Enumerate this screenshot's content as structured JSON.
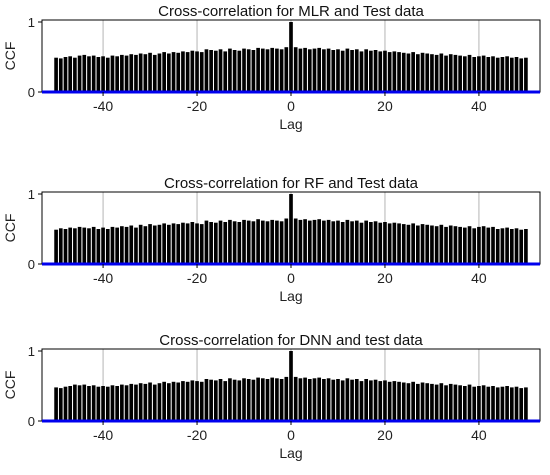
{
  "style": {
    "bar_color": "#000000",
    "zero_line_color": "#0000ee",
    "grid_color": "#b4b4b4",
    "frame_color": "#000000"
  },
  "chart_data": [
    {
      "type": "bar",
      "title": "Cross-correlation for MLR and Test data",
      "xlabel": "Lag",
      "ylabel": "CCF",
      "xlim": [
        -53,
        53
      ],
      "ylim": [
        0,
        1
      ],
      "xticks": [
        -40,
        -20,
        0,
        20,
        40
      ],
      "yticks": [
        0,
        1
      ],
      "grid": "vertical at x ticks",
      "x": [
        -50,
        -49,
        -48,
        -47,
        -46,
        -45,
        -44,
        -43,
        -42,
        -41,
        -40,
        -39,
        -38,
        -37,
        -36,
        -35,
        -34,
        -33,
        -32,
        -31,
        -30,
        -29,
        -28,
        -27,
        -26,
        -25,
        -24,
        -23,
        -22,
        -21,
        -20,
        -19,
        -18,
        -17,
        -16,
        -15,
        -14,
        -13,
        -12,
        -11,
        -10,
        -9,
        -8,
        -7,
        -6,
        -5,
        -4,
        -3,
        -2,
        -1,
        0,
        1,
        2,
        3,
        4,
        5,
        6,
        7,
        8,
        9,
        10,
        11,
        12,
        13,
        14,
        15,
        16,
        17,
        18,
        19,
        20,
        21,
        22,
        23,
        24,
        25,
        26,
        27,
        28,
        29,
        30,
        31,
        32,
        33,
        34,
        35,
        36,
        37,
        38,
        39,
        40,
        41,
        42,
        43,
        44,
        45,
        46,
        47,
        48,
        49,
        50
      ],
      "values": [
        0.49,
        0.48,
        0.5,
        0.51,
        0.49,
        0.52,
        0.53,
        0.51,
        0.52,
        0.5,
        0.51,
        0.49,
        0.52,
        0.51,
        0.53,
        0.52,
        0.54,
        0.53,
        0.55,
        0.54,
        0.56,
        0.53,
        0.55,
        0.57,
        0.55,
        0.57,
        0.56,
        0.58,
        0.57,
        0.59,
        0.58,
        0.57,
        0.61,
        0.6,
        0.59,
        0.61,
        0.58,
        0.62,
        0.6,
        0.59,
        0.62,
        0.61,
        0.6,
        0.63,
        0.62,
        0.61,
        0.63,
        0.62,
        0.61,
        0.64,
        1.0,
        0.64,
        0.62,
        0.63,
        0.61,
        0.62,
        0.63,
        0.61,
        0.62,
        0.6,
        0.61,
        0.59,
        0.62,
        0.6,
        0.61,
        0.58,
        0.61,
        0.59,
        0.6,
        0.58,
        0.59,
        0.57,
        0.58,
        0.57,
        0.56,
        0.55,
        0.57,
        0.54,
        0.56,
        0.55,
        0.54,
        0.53,
        0.55,
        0.52,
        0.54,
        0.53,
        0.52,
        0.51,
        0.53,
        0.5,
        0.51,
        0.52,
        0.5,
        0.51,
        0.49,
        0.5,
        0.51,
        0.49,
        0.5,
        0.48,
        0.49
      ]
    },
    {
      "type": "bar",
      "title": "Cross-correlation for RF and Test data",
      "xlabel": "Lag",
      "ylabel": "CCF",
      "xlim": [
        -53,
        53
      ],
      "ylim": [
        0,
        1
      ],
      "xticks": [
        -40,
        -20,
        0,
        20,
        40
      ],
      "yticks": [
        0,
        1
      ],
      "grid": "vertical at x ticks",
      "x": [
        -50,
        -49,
        -48,
        -47,
        -46,
        -45,
        -44,
        -43,
        -42,
        -41,
        -40,
        -39,
        -38,
        -37,
        -36,
        -35,
        -34,
        -33,
        -32,
        -31,
        -30,
        -29,
        -28,
        -27,
        -26,
        -25,
        -24,
        -23,
        -22,
        -21,
        -20,
        -19,
        -18,
        -17,
        -16,
        -15,
        -14,
        -13,
        -12,
        -11,
        -10,
        -9,
        -8,
        -7,
        -6,
        -5,
        -4,
        -3,
        -2,
        -1,
        0,
        1,
        2,
        3,
        4,
        5,
        6,
        7,
        8,
        9,
        10,
        11,
        12,
        13,
        14,
        15,
        16,
        17,
        18,
        19,
        20,
        21,
        22,
        23,
        24,
        25,
        26,
        27,
        28,
        29,
        30,
        31,
        32,
        33,
        34,
        35,
        36,
        37,
        38,
        39,
        40,
        41,
        42,
        43,
        44,
        45,
        46,
        47,
        48,
        49,
        50
      ],
      "values": [
        0.49,
        0.51,
        0.5,
        0.52,
        0.51,
        0.53,
        0.52,
        0.51,
        0.53,
        0.5,
        0.52,
        0.5,
        0.53,
        0.52,
        0.54,
        0.53,
        0.55,
        0.52,
        0.56,
        0.54,
        0.57,
        0.55,
        0.56,
        0.58,
        0.56,
        0.58,
        0.57,
        0.59,
        0.58,
        0.6,
        0.58,
        0.57,
        0.62,
        0.6,
        0.59,
        0.62,
        0.6,
        0.63,
        0.61,
        0.6,
        0.63,
        0.62,
        0.61,
        0.64,
        0.62,
        0.61,
        0.63,
        0.62,
        0.61,
        0.65,
        1.0,
        0.65,
        0.63,
        0.64,
        0.62,
        0.63,
        0.64,
        0.62,
        0.63,
        0.61,
        0.62,
        0.6,
        0.63,
        0.61,
        0.62,
        0.59,
        0.62,
        0.6,
        0.61,
        0.59,
        0.6,
        0.58,
        0.59,
        0.58,
        0.57,
        0.56,
        0.58,
        0.55,
        0.57,
        0.56,
        0.55,
        0.54,
        0.56,
        0.53,
        0.55,
        0.54,
        0.53,
        0.52,
        0.54,
        0.51,
        0.53,
        0.54,
        0.52,
        0.53,
        0.5,
        0.51,
        0.52,
        0.5,
        0.51,
        0.49,
        0.5
      ]
    },
    {
      "type": "bar",
      "title": "Cross-correlation for DNN and test data",
      "xlabel": "Lag",
      "ylabel": "CCF",
      "xlim": [
        -53,
        53
      ],
      "ylim": [
        0,
        1
      ],
      "xticks": [
        -40,
        -20,
        0,
        20,
        40
      ],
      "yticks": [
        0,
        1
      ],
      "grid": "vertical at x ticks",
      "x": [
        -50,
        -49,
        -48,
        -47,
        -46,
        -45,
        -44,
        -43,
        -42,
        -41,
        -40,
        -39,
        -38,
        -37,
        -36,
        -35,
        -34,
        -33,
        -32,
        -31,
        -30,
        -29,
        -28,
        -27,
        -26,
        -25,
        -24,
        -23,
        -22,
        -21,
        -20,
        -19,
        -18,
        -17,
        -16,
        -15,
        -14,
        -13,
        -12,
        -11,
        -10,
        -9,
        -8,
        -7,
        -6,
        -5,
        -4,
        -3,
        -2,
        -1,
        0,
        1,
        2,
        3,
        4,
        5,
        6,
        7,
        8,
        9,
        10,
        11,
        12,
        13,
        14,
        15,
        16,
        17,
        18,
        19,
        20,
        21,
        22,
        23,
        24,
        25,
        26,
        27,
        28,
        29,
        30,
        31,
        32,
        33,
        34,
        35,
        36,
        37,
        38,
        39,
        40,
        41,
        42,
        43,
        44,
        45,
        46,
        47,
        48,
        49,
        50
      ],
      "values": [
        0.48,
        0.47,
        0.49,
        0.5,
        0.52,
        0.51,
        0.52,
        0.5,
        0.51,
        0.49,
        0.5,
        0.49,
        0.51,
        0.5,
        0.52,
        0.51,
        0.53,
        0.52,
        0.54,
        0.53,
        0.55,
        0.52,
        0.54,
        0.56,
        0.54,
        0.56,
        0.55,
        0.57,
        0.56,
        0.58,
        0.57,
        0.56,
        0.6,
        0.59,
        0.58,
        0.6,
        0.57,
        0.61,
        0.59,
        0.58,
        0.61,
        0.6,
        0.59,
        0.62,
        0.61,
        0.6,
        0.62,
        0.61,
        0.6,
        0.63,
        1.0,
        0.63,
        0.61,
        0.62,
        0.6,
        0.61,
        0.62,
        0.6,
        0.61,
        0.59,
        0.6,
        0.58,
        0.61,
        0.59,
        0.6,
        0.57,
        0.6,
        0.58,
        0.59,
        0.57,
        0.58,
        0.56,
        0.57,
        0.56,
        0.55,
        0.54,
        0.56,
        0.53,
        0.55,
        0.54,
        0.53,
        0.52,
        0.54,
        0.51,
        0.53,
        0.52,
        0.51,
        0.5,
        0.52,
        0.49,
        0.5,
        0.51,
        0.49,
        0.5,
        0.48,
        0.49,
        0.5,
        0.48,
        0.49,
        0.47,
        0.48
      ]
    }
  ]
}
